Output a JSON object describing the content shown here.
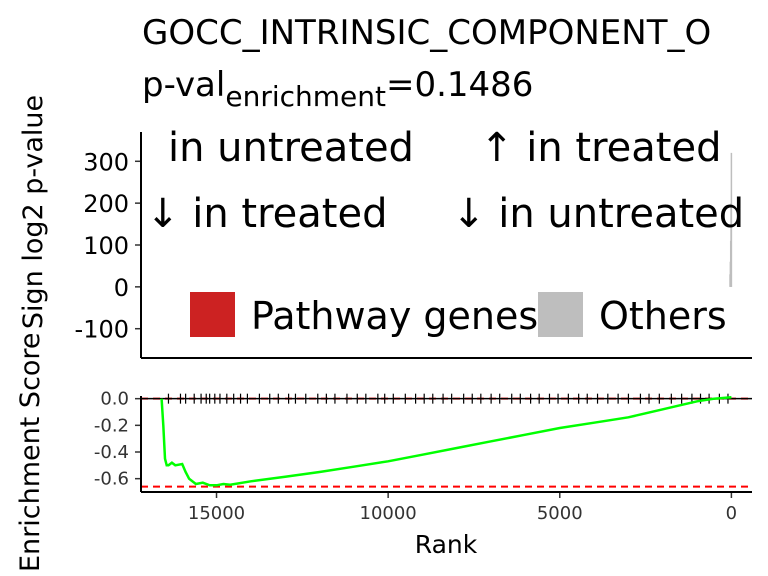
{
  "chart_data": [
    {
      "type": "area",
      "title": "GOCC_INTRINSIC_COMPONENT_O",
      "subtitle_prefix": "p-val",
      "subtitle_subscript": "enrichment",
      "subtitle_value": "=0.1486",
      "ylabel": "Sign log2 p-value",
      "ylim": [
        -170,
        370
      ],
      "yticks": [
        "300",
        "200",
        "100",
        "0",
        "-100"
      ],
      "ytick_values": [
        300,
        200,
        100,
        0,
        -100
      ],
      "xlim": [
        17200,
        -600
      ],
      "quadrant_labels": {
        "top_left": "in untreated",
        "top_right": "↑ in treated",
        "bottom_left": "↓ in treated",
        "bottom_right": "↓ in untreated"
      },
      "legend": {
        "placement": "bottom-center",
        "items": [
          {
            "label": "Pathway genes",
            "color": "#CC2222"
          },
          {
            "label": "Others",
            "color": "#BEBEBE"
          }
        ]
      },
      "series": [
        {
          "name": "Others",
          "color": "#BEBEBE",
          "x": [
            40,
            30,
            20,
            10,
            0
          ],
          "y": [
            30,
            60,
            110,
            200,
            320
          ]
        }
      ]
    },
    {
      "type": "line",
      "xlabel": "Rank",
      "ylabel": "Enrichment Score",
      "xlim": [
        17200,
        -600
      ],
      "ylim": [
        -0.7,
        0.02
      ],
      "xticks": [
        "15000",
        "10000",
        "5000",
        "0"
      ],
      "xtick_values": [
        15000,
        10000,
        5000,
        0
      ],
      "yticks": [
        "0.0",
        "-0.2",
        "-0.4",
        "-0.6"
      ],
      "ytick_values": [
        0.0,
        -0.2,
        -0.4,
        -0.6
      ],
      "reference_lines": [
        0.0,
        -0.66
      ],
      "reference_color": "#FF0000",
      "series": [
        {
          "name": "",
          "color": "#00FF00",
          "x": [
            16600,
            16550,
            16500,
            16450,
            16400,
            16300,
            16200,
            16000,
            15900,
            15800,
            15600,
            15400,
            15200,
            15000,
            14800,
            14600,
            14000,
            13000,
            12000,
            11000,
            10000,
            9000,
            8000,
            7000,
            6000,
            5000,
            4000,
            3000,
            2500,
            2000,
            1500,
            1000,
            500,
            0
          ],
          "y": [
            0.0,
            -0.2,
            -0.45,
            -0.5,
            -0.5,
            -0.48,
            -0.5,
            -0.49,
            -0.55,
            -0.6,
            -0.64,
            -0.63,
            -0.65,
            -0.65,
            -0.64,
            -0.645,
            -0.62,
            -0.585,
            -0.55,
            -0.51,
            -0.47,
            -0.42,
            -0.37,
            -0.32,
            -0.27,
            -0.22,
            -0.18,
            -0.14,
            -0.11,
            -0.08,
            -0.05,
            -0.02,
            0.0,
            0.01
          ]
        }
      ],
      "rug_positions": [
        16400,
        16050,
        15900,
        15650,
        15450,
        15300,
        15200,
        15050,
        14900,
        14700,
        14500,
        14300,
        14100,
        13750,
        13450,
        13200,
        12900,
        12700,
        12400,
        12050,
        11800,
        11550,
        11200,
        10900,
        10650,
        10300,
        10100,
        9850,
        9500,
        9200,
        8950,
        8700,
        8400,
        8150,
        7800,
        7550,
        7300,
        7000,
        6750,
        6400,
        6150,
        5850,
        5600,
        5300,
        5050,
        4750,
        4450,
        4200,
        3900,
        3600,
        3300,
        3000,
        2650,
        2400,
        2100,
        1750,
        1450,
        1150,
        900,
        650,
        350,
        100
      ]
    }
  ]
}
